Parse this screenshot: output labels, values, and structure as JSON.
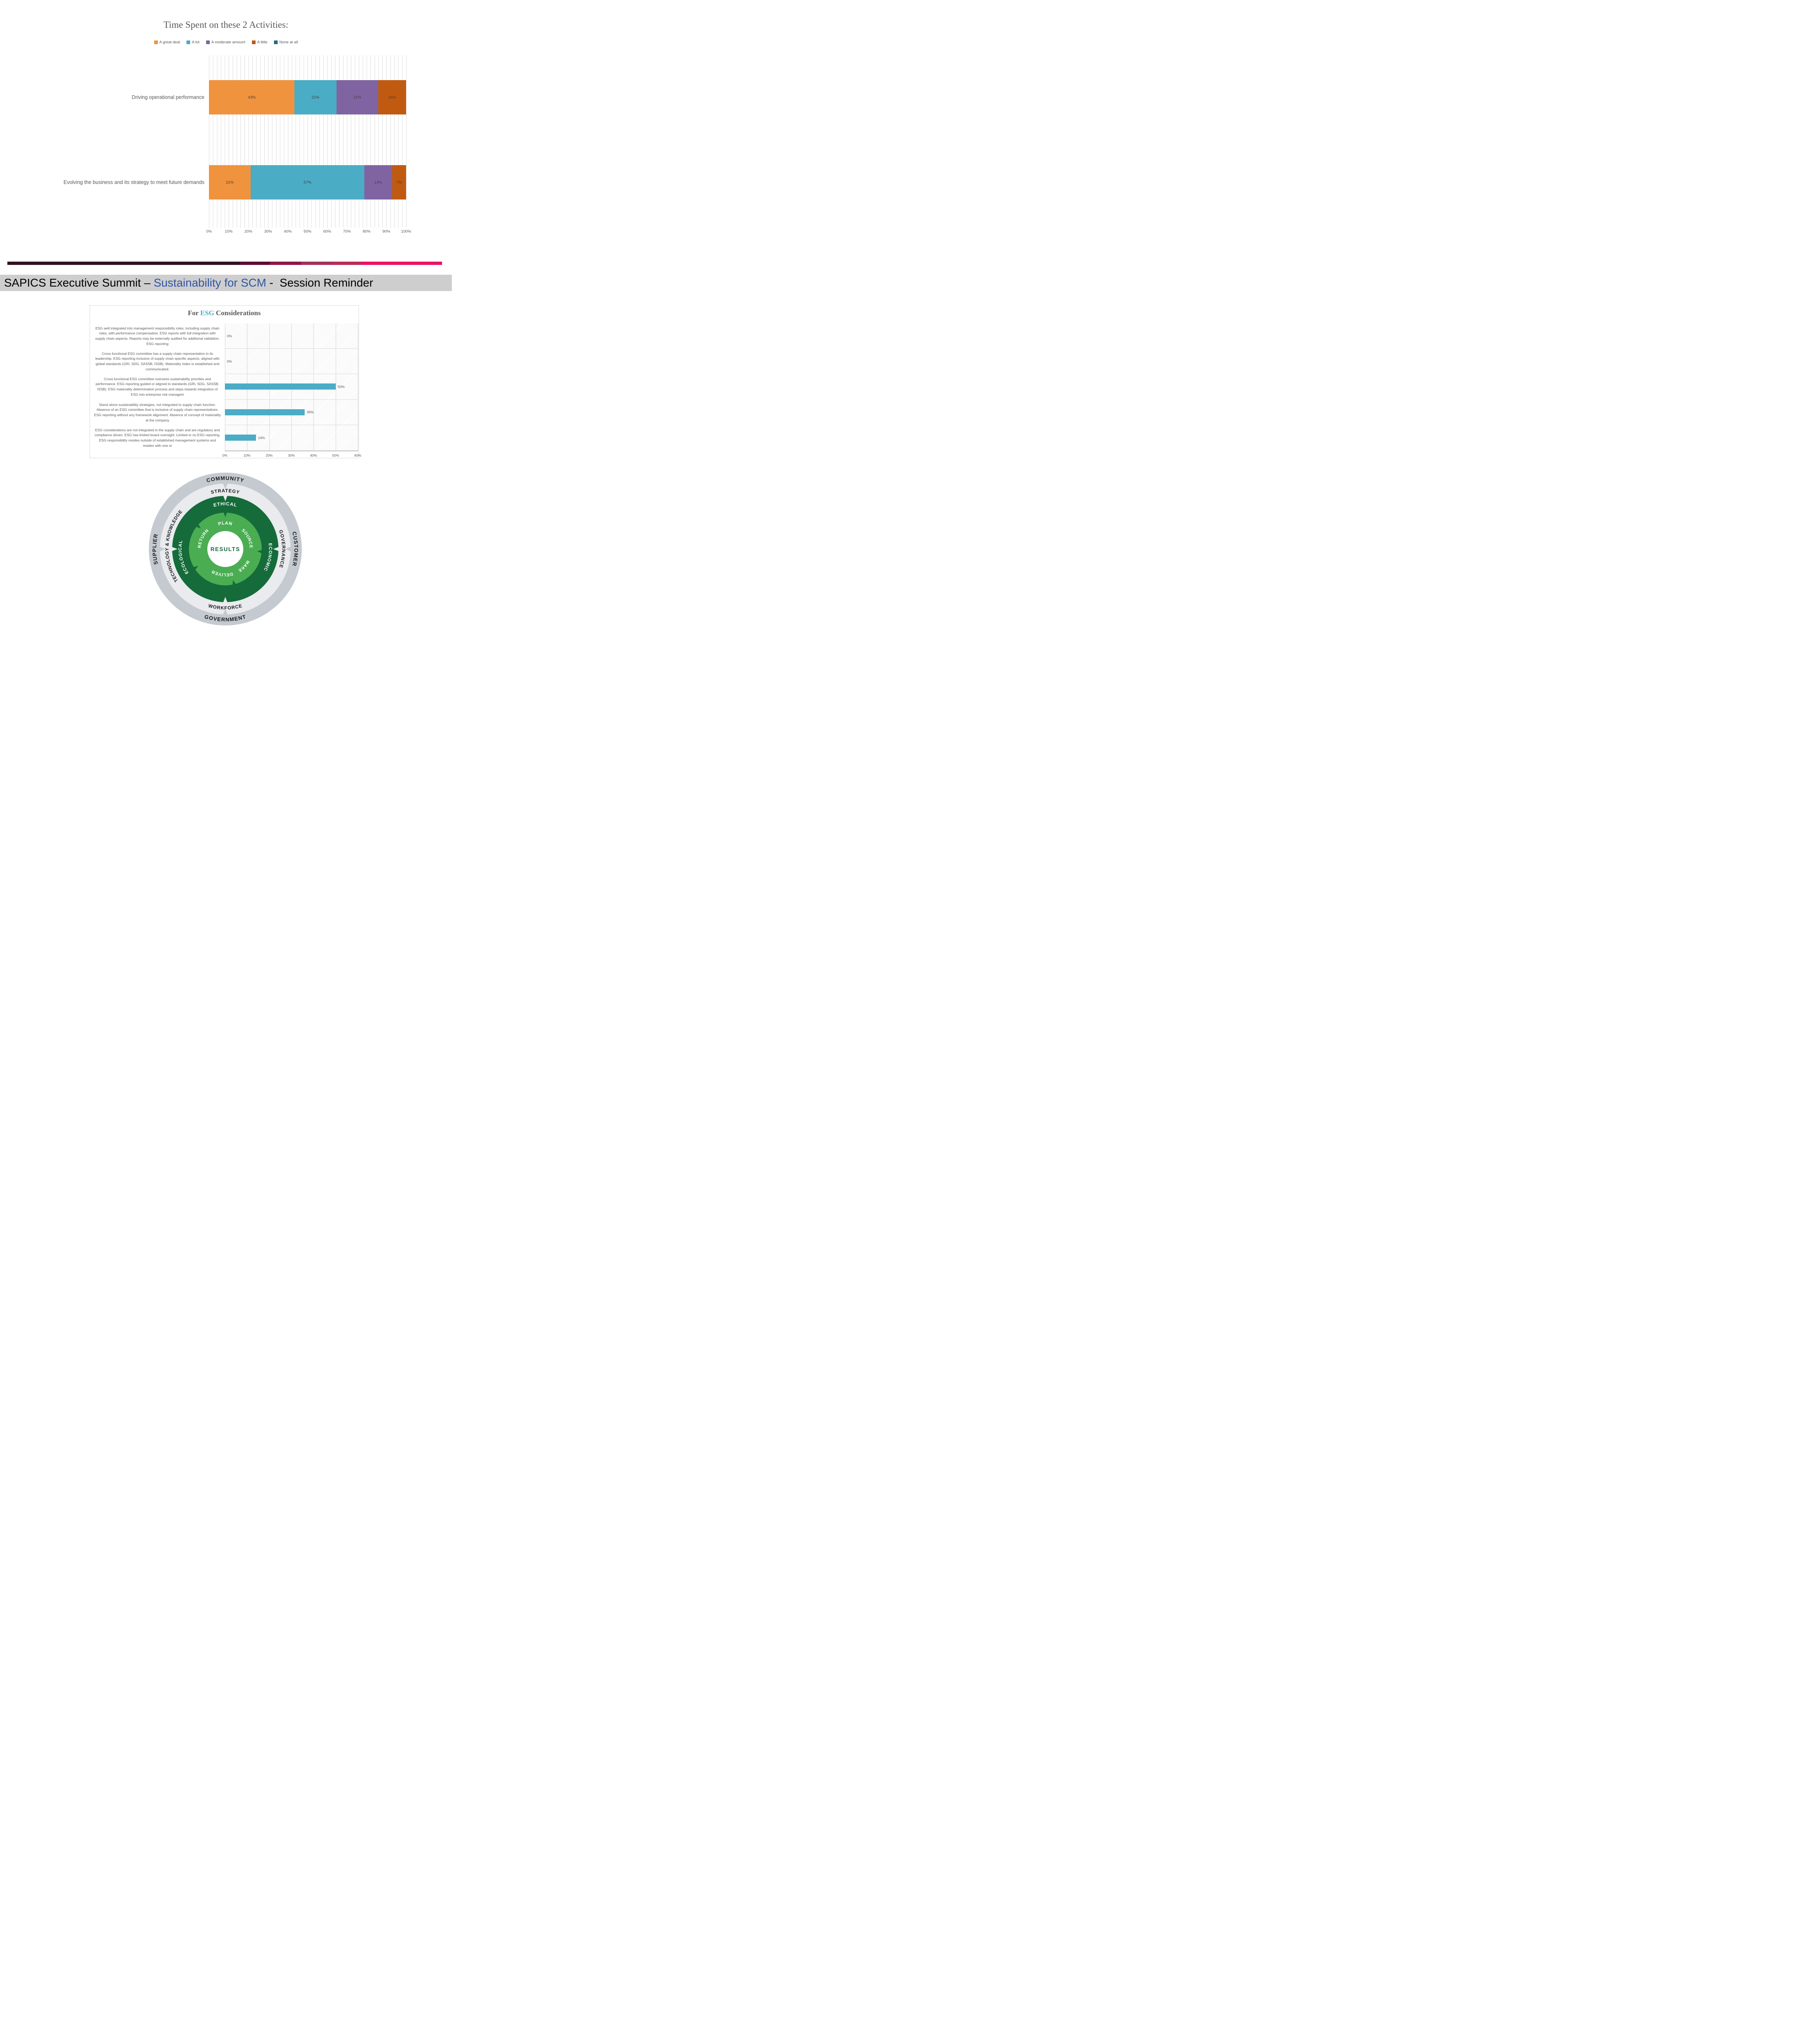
{
  "time_chart": {
    "title": "Time Spent on these 2 Activities:",
    "legend": [
      {
        "label": "A great deal",
        "color": "#F0933E"
      },
      {
        "label": "A lot",
        "color": "#4BACC6"
      },
      {
        "label": "A moderate amount",
        "color": "#8064A2"
      },
      {
        "label": "A little",
        "color": "#C05A11"
      },
      {
        "label": "None at all",
        "color": "#1F6D7E"
      }
    ],
    "rows": [
      {
        "label": "Driving operational performance",
        "segments": [
          {
            "label": "43%",
            "value": 43,
            "color": "#F0933E"
          },
          {
            "label": "21%",
            "value": 21,
            "color": "#4BACC6"
          },
          {
            "label": "21%",
            "value": 21,
            "color": "#8064A2"
          },
          {
            "label": "14%",
            "value": 14,
            "color": "#C05A11"
          }
        ]
      },
      {
        "label": "Evolving the business and its strategy to meet future demands",
        "segments": [
          {
            "label": "21%",
            "value": 21,
            "color": "#F0933E"
          },
          {
            "label": "57%",
            "value": 57,
            "color": "#4BACC6"
          },
          {
            "label": "14%",
            "value": 14,
            "color": "#8064A2"
          },
          {
            "label": "7%",
            "value": 7,
            "color": "#C05A11"
          }
        ]
      }
    ],
    "x_ticks": [
      "0%",
      "10%",
      "20%",
      "30%",
      "40%",
      "50%",
      "60%",
      "70%",
      "80%",
      "90%",
      "100%"
    ]
  },
  "divider": {
    "colors": [
      "#321322",
      "#5f0b34",
      "#8f1644",
      "#a43157",
      "#bc2a56",
      "#ec1164"
    ]
  },
  "banner": {
    "prefix": "SAPICS Executive Summit – ",
    "highlight": "Sustainability for SCM",
    "suffix": " -  Session Reminder",
    "highlight_color": "#2E55A3",
    "background": "#cecece"
  },
  "esg_chart": {
    "title_prefix": "For ",
    "title_highlight": "ESG",
    "title_suffix": " Considerations",
    "highlight_color": "#4BACC6",
    "bar_color": "#4BACC6",
    "x_max": 60,
    "x_ticks": [
      "0%",
      "10%",
      "20%",
      "30%",
      "40%",
      "50%",
      "60%"
    ],
    "rows": [
      {
        "text": "ESG well integrated into management responsibility roles, including supply chain roles, with performance compensation.  ESG reports with full integration with supply chain aspects. Reports may be externally audited for additional validation. ESG reporting",
        "value": 0,
        "value_label": "0%"
      },
      {
        "text": "Cross functional ESG committee has a supply chain representation in its leadership. ESG reporting inclusive of supply chain specific aspects, aligned with global standards (GRI, SDG, SASSB, ISSB). Materiality index is established and communicated.",
        "value": 0,
        "value_label": "0%"
      },
      {
        "text": "Cross functional ESG committee oversees sustainability priorities and performance. ESG reporting guided or aligned to standards (GRI, SDG, SASSB, ISSB). ESG materiality determination process and steps towards integration of ESG into enterprise risk managem",
        "value": 50,
        "value_label": "50%"
      },
      {
        "text": "Stand alone sustainability strategies, not integrated to supply chain function. Absence of an ESG committee that is inclusive of supply chain representatives. ESG reporting without any framework alignment.  Absence of concept of materiality at the company",
        "value": 36,
        "value_label": "36%"
      },
      {
        "text": "ESG considerations are not integrated in the supply chain and are regulatory and compliance driven.  ESG has limited board oversight. Limited or no ESG reporting. ESG responsibility resides outside of established management systems and resides with one or",
        "value": 14,
        "value_label": "14%"
      }
    ]
  },
  "wheel": {
    "outer_ring": {
      "color": "#c4cad0",
      "labels": {
        "top": "COMMUNITY",
        "right": "CUSTOMER",
        "bottom": "GOVERNMENT",
        "left": "SUPPLIER"
      }
    },
    "second_ring": {
      "color": "#e9ebee",
      "labels": {
        "top": "STRATEGY",
        "right": "GOVERNANCE",
        "bottom": "WORKFORCE",
        "left": "TECHNOLOGY & KNOWLEDGE"
      }
    },
    "third_ring": {
      "color": "#156B3A",
      "labels": {
        "top": "ETHICAL",
        "right": "ECONOMIC",
        "left": "ECOLOGICAL"
      }
    },
    "inner_ring": {
      "color": "#4AAD52",
      "labels": {
        "top": "PLAN",
        "upper_right": "SOURCE",
        "lower_right": "MAKE",
        "bottom": "DELIVER",
        "upper_left": "RETURN"
      }
    },
    "center": {
      "label": "RESULTS",
      "background": "#ffffff",
      "text_color": "#156B3A"
    }
  },
  "chart_data": [
    {
      "type": "bar",
      "stacked": true,
      "orientation": "horizontal",
      "title": "Time Spent on these 2 Activities:",
      "categories": [
        "Driving operational performance",
        "Evolving the business and its strategy to meet future demands"
      ],
      "series": [
        {
          "name": "A great deal",
          "values": [
            43,
            21
          ]
        },
        {
          "name": "A lot",
          "values": [
            21,
            57
          ]
        },
        {
          "name": "A moderate amount",
          "values": [
            21,
            14
          ]
        },
        {
          "name": "A little",
          "values": [
            14,
            7
          ]
        },
        {
          "name": "None at all",
          "values": [
            0,
            0
          ]
        }
      ],
      "xlim": [
        0,
        100
      ],
      "x_tick_step": 10,
      "x_tick_format": "percent",
      "legend_position": "top",
      "grid": true
    },
    {
      "type": "bar",
      "orientation": "horizontal",
      "title": "For ESG Considerations",
      "categories": [
        "ESG well integrated into management responsibility roles, including supply chain roles, with performance compensation.  ESG reports with full integration with supply chain aspects. Reports may be externally audited for additional validation. ESG reporting",
        "Cross functional ESG committee has a supply chain representation in its leadership. ESG reporting inclusive of supply chain specific aspects, aligned with global standards (GRI, SDG, SASSB, ISSB). Materiality index is established and communicated.",
        "Cross functional ESG committee oversees sustainability priorities and performance. ESG reporting guided or aligned to standards (GRI, SDG, SASSB, ISSB). ESG materiality determination process and steps towards integration of ESG into enterprise risk managem",
        "Stand alone sustainability strategies, not integrated to supply chain function. Absence of an ESG committee that is inclusive of supply chain representatives. ESG reporting without any framework alignment.  Absence of concept of materiality at the company",
        "ESG considerations are not integrated in the supply chain and are regulatory and compliance driven.  ESG has limited board oversight. Limited or no ESG reporting. ESG responsibility resides outside of established management systems and resides with one or"
      ],
      "values": [
        0,
        0,
        50,
        36,
        14
      ],
      "xlim": [
        0,
        60
      ],
      "x_tick_step": 10,
      "x_tick_format": "percent",
      "grid": true
    }
  ]
}
